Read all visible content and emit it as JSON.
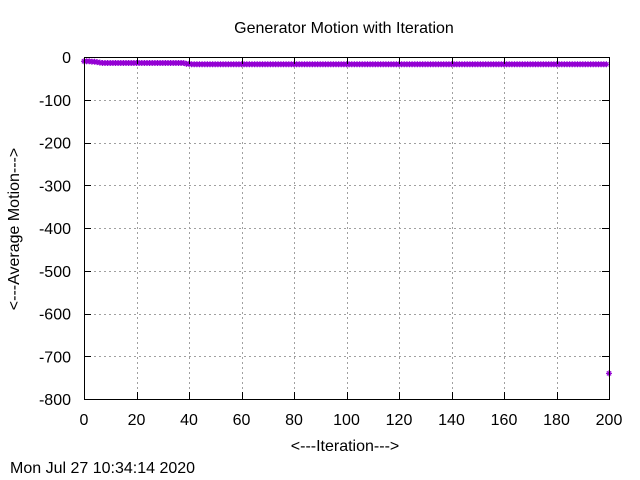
{
  "chart_data": {
    "type": "scatter",
    "title": "Generator Motion with Iteration",
    "xlabel": "<---Iteration--->",
    "ylabel": "<---Average Motion--->",
    "xlim": [
      0,
      200
    ],
    "ylim": [
      -800,
      0
    ],
    "xticks": [
      0,
      20,
      40,
      60,
      80,
      100,
      120,
      140,
      160,
      180,
      200
    ],
    "yticks": [
      0,
      -100,
      -200,
      -300,
      -400,
      -500,
      -600,
      -700,
      -800
    ],
    "grid": true,
    "series": [
      {
        "color": "#9400d3",
        "marker": "star",
        "x": [
          0,
          1,
          2,
          3,
          4,
          5,
          6,
          7,
          8,
          9,
          10,
          11,
          12,
          13,
          14,
          15,
          16,
          17,
          18,
          19,
          20,
          21,
          22,
          23,
          24,
          25,
          26,
          27,
          28,
          29,
          30,
          31,
          32,
          33,
          34,
          35,
          36,
          37,
          38,
          39,
          40,
          41,
          42,
          43,
          44,
          45,
          46,
          47,
          48,
          49,
          50,
          51,
          52,
          53,
          54,
          55,
          56,
          57,
          58,
          59,
          60,
          61,
          62,
          63,
          64,
          65,
          66,
          67,
          68,
          69,
          70,
          71,
          72,
          73,
          74,
          75,
          76,
          77,
          78,
          79,
          80,
          81,
          82,
          83,
          84,
          85,
          86,
          87,
          88,
          89,
          90,
          91,
          92,
          93,
          94,
          95,
          96,
          97,
          98,
          99,
          100,
          101,
          102,
          103,
          104,
          105,
          106,
          107,
          108,
          109,
          110,
          111,
          112,
          113,
          114,
          115,
          116,
          117,
          118,
          119,
          120,
          121,
          122,
          123,
          124,
          125,
          126,
          127,
          128,
          129,
          130,
          131,
          132,
          133,
          134,
          135,
          136,
          137,
          138,
          139,
          140,
          141,
          142,
          143,
          144,
          145,
          146,
          147,
          148,
          149,
          150,
          151,
          152,
          153,
          154,
          155,
          156,
          157,
          158,
          159,
          160,
          161,
          162,
          163,
          164,
          165,
          166,
          167,
          168,
          169,
          170,
          171,
          172,
          173,
          174,
          175,
          176,
          177,
          178,
          179,
          180,
          181,
          182,
          183,
          184,
          185,
          186,
          187,
          188,
          189,
          190,
          191,
          192,
          193,
          194,
          195,
          196,
          197,
          198,
          199,
          200
        ],
        "y": [
          -10,
          -10,
          -10,
          -11,
          -11,
          -12,
          -13,
          -14,
          -14,
          -14,
          -14,
          -14,
          -14,
          -14,
          -14,
          -14,
          -14,
          -14,
          -14,
          -14,
          -14,
          -14,
          -14,
          -14,
          -14,
          -14,
          -14,
          -14,
          -14,
          -14,
          -14,
          -14,
          -14,
          -14,
          -14,
          -14,
          -14,
          -14,
          -14,
          -16,
          -16,
          -17,
          -17,
          -17,
          -17,
          -17,
          -17,
          -17,
          -17,
          -17,
          -17,
          -17,
          -17,
          -17,
          -17,
          -17,
          -17,
          -17,
          -17,
          -17,
          -17,
          -17,
          -17,
          -17,
          -17,
          -17,
          -17,
          -17,
          -17,
          -17,
          -17,
          -17,
          -17,
          -17,
          -17,
          -17,
          -17,
          -17,
          -17,
          -17,
          -17,
          -17,
          -17,
          -17,
          -17,
          -17,
          -17,
          -17,
          -17,
          -17,
          -17,
          -17,
          -17,
          -17,
          -17,
          -17,
          -17,
          -17,
          -17,
          -17,
          -17,
          -17,
          -17,
          -17,
          -17,
          -17,
          -17,
          -17,
          -17,
          -17,
          -17,
          -17,
          -17,
          -17,
          -17,
          -17,
          -17,
          -17,
          -17,
          -17,
          -17,
          -17,
          -17,
          -17,
          -17,
          -17,
          -17,
          -17,
          -17,
          -17,
          -17,
          -17,
          -17,
          -17,
          -17,
          -17,
          -17,
          -17,
          -17,
          -17,
          -17,
          -17,
          -17,
          -17,
          -17,
          -17,
          -17,
          -17,
          -17,
          -17,
          -17,
          -17,
          -17,
          -17,
          -17,
          -17,
          -17,
          -17,
          -17,
          -17,
          -17,
          -17,
          -17,
          -17,
          -17,
          -17,
          -17,
          -17,
          -17,
          -17,
          -17,
          -17,
          -17,
          -17,
          -17,
          -17,
          -17,
          -17,
          -17,
          -17,
          -17,
          -17,
          -17,
          -17,
          -17,
          -17,
          -17,
          -17,
          -17,
          -17,
          -17,
          -17,
          -17,
          -17,
          -17,
          -17,
          -17,
          -17,
          -17,
          -17,
          -740
        ]
      }
    ]
  },
  "timestamp": "Mon Jul 27 10:34:14 2020"
}
